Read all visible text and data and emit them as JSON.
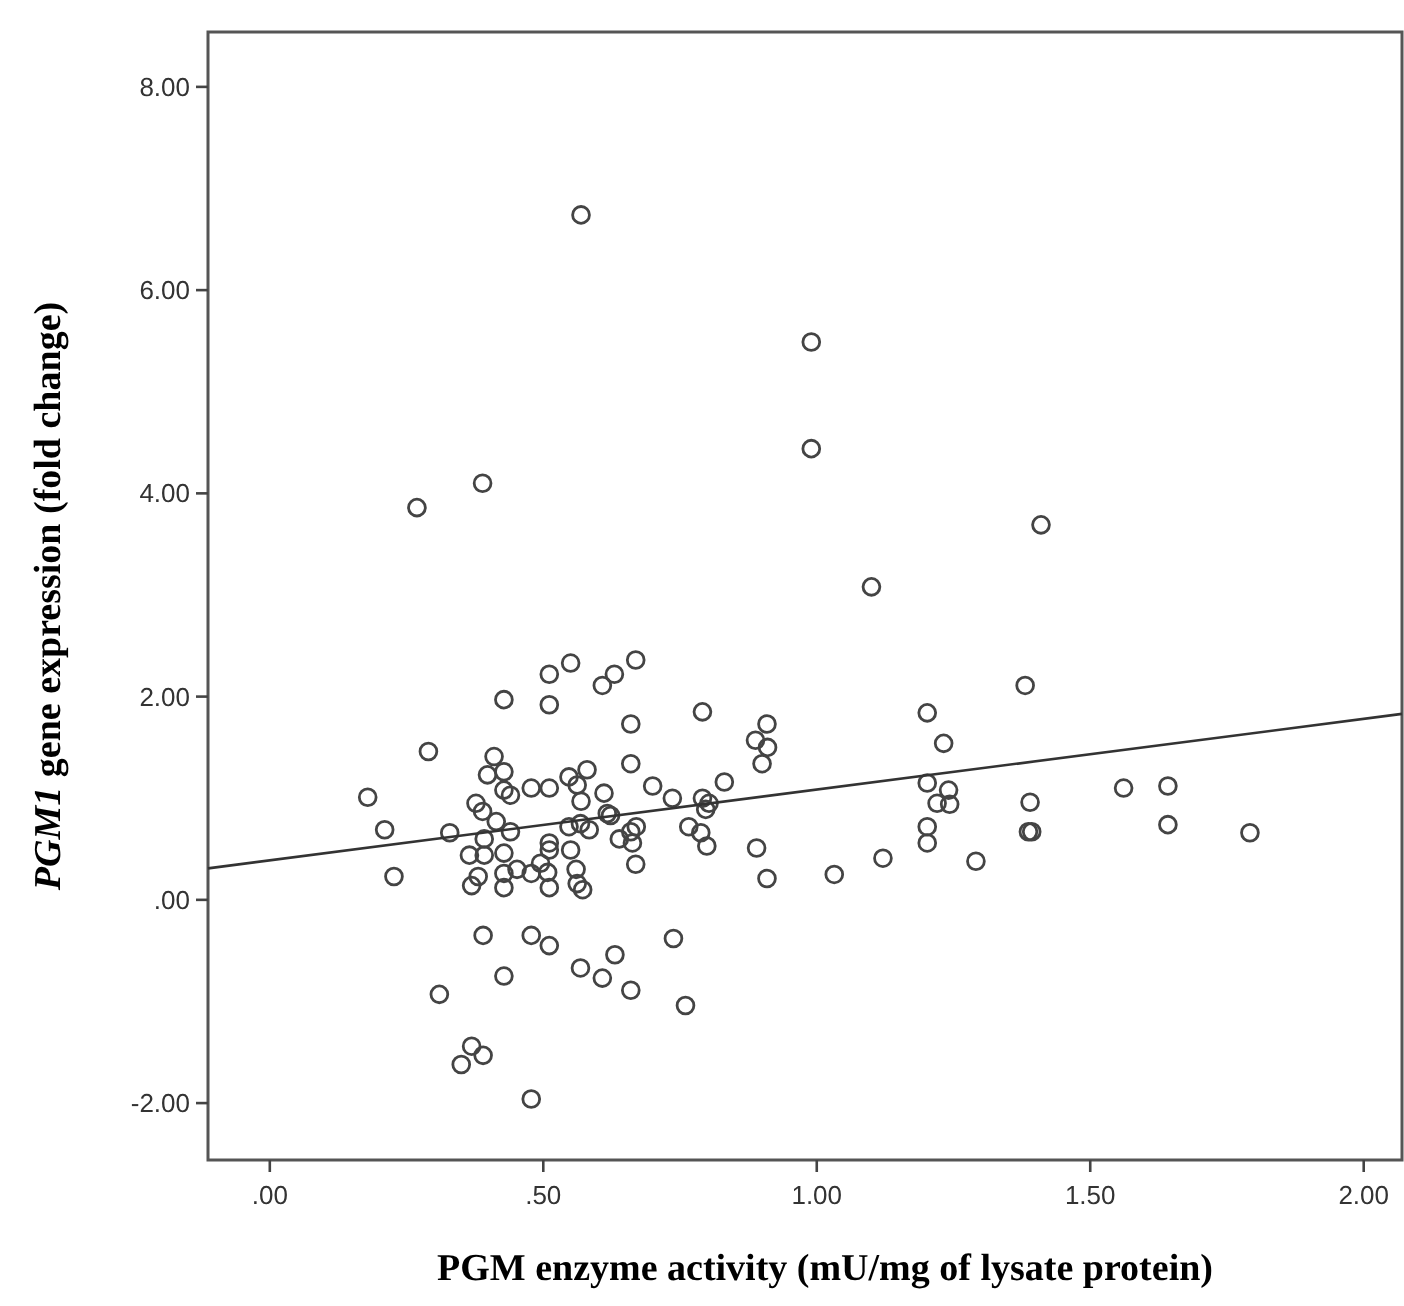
{
  "chart_data": {
    "type": "scatter",
    "xlabel": "PGM enzyme activity (mU/mg of lysate protein)",
    "ylabel": "PGM1 gene expression (fold change)",
    "xlim": [
      -0.113,
      2.07
    ],
    "ylim": [
      -2.56,
      8.54
    ],
    "xticks": [
      {
        "value": 0,
        "label": ".00"
      },
      {
        "value": 0.5,
        "label": ".50"
      },
      {
        "value": 1,
        "label": "1.00"
      },
      {
        "value": 1.5,
        "label": "1.50"
      },
      {
        "value": 2,
        "label": "2.00"
      }
    ],
    "yticks": [
      {
        "value": -2,
        "label": "-2.00"
      },
      {
        "value": 0,
        "label": ".00"
      },
      {
        "value": 2,
        "label": "2.00"
      },
      {
        "value": 4,
        "label": "4.00"
      },
      {
        "value": 6,
        "label": "6.00"
      },
      {
        "value": 8,
        "label": "8.00"
      }
    ],
    "grid": false,
    "marker": "circle",
    "series": [
      {
        "color": "#444444",
        "x": [
          0.569,
          0.389,
          0.269,
          0.99,
          0.99,
          1.41,
          1.1,
          0.179,
          0.21,
          0.227,
          0.29,
          0.31,
          0.329,
          0.35,
          0.369,
          0.39,
          0.39,
          0.369,
          0.381,
          0.365,
          0.392,
          0.392,
          0.377,
          0.389,
          0.41,
          0.398,
          0.414,
          0.428,
          0.428,
          0.428,
          0.44,
          0.44,
          0.428,
          0.428,
          0.428,
          0.452,
          0.428,
          0.478,
          0.478,
          0.478,
          0.478,
          0.495,
          0.511,
          0.511,
          0.511,
          0.511,
          0.511,
          0.508,
          0.511,
          0.511,
          0.55,
          0.547,
          0.562,
          0.547,
          0.55,
          0.56,
          0.562,
          0.572,
          0.568,
          0.569,
          0.568,
          0.58,
          0.584,
          0.608,
          0.63,
          0.611,
          0.617,
          0.623,
          0.608,
          0.631,
          0.639,
          0.66,
          0.66,
          0.66,
          0.663,
          0.67,
          0.669,
          0.669,
          0.66,
          0.7,
          0.736,
          0.738,
          0.76,
          0.766,
          0.791,
          0.791,
          0.797,
          0.803,
          0.788,
          0.799,
          0.831,
          0.888,
          0.909,
          0.91,
          0.9,
          0.89,
          0.909,
          1.202,
          1.232,
          1.202,
          1.241,
          1.22,
          1.243,
          1.202,
          1.202,
          1.121,
          1.032,
          1.291,
          1.381,
          1.39,
          1.387,
          1.393,
          1.561,
          1.642,
          1.642,
          1.792
        ],
        "values": [
          6.74,
          4.1,
          3.86,
          5.49,
          4.44,
          3.69,
          3.08,
          1.01,
          0.69,
          0.23,
          1.46,
          -0.93,
          0.66,
          -1.62,
          -1.44,
          -1.53,
          -0.35,
          0.14,
          0.23,
          0.44,
          0.44,
          0.6,
          0.95,
          0.87,
          1.41,
          1.23,
          0.77,
          1.97,
          1.26,
          1.08,
          1.03,
          0.67,
          0.46,
          0.26,
          0.12,
          0.3,
          -0.75,
          1.1,
          0.26,
          -0.35,
          -1.96,
          0.36,
          2.22,
          1.92,
          1.1,
          0.56,
          0.49,
          0.27,
          0.12,
          -0.45,
          2.33,
          1.21,
          1.13,
          0.72,
          0.49,
          0.3,
          0.16,
          0.1,
          -0.67,
          0.97,
          0.75,
          1.28,
          0.69,
          2.11,
          2.22,
          1.05,
          0.85,
          0.83,
          -0.77,
          -0.54,
          0.6,
          1.73,
          1.34,
          0.67,
          0.56,
          0.72,
          0.35,
          2.36,
          -0.89,
          1.12,
          1,
          -0.38,
          -1.04,
          0.72,
          1.85,
          1,
          0.89,
          0.95,
          0.66,
          0.53,
          1.16,
          1.57,
          1.73,
          1.5,
          1.34,
          0.51,
          0.21,
          1.84,
          1.54,
          1.15,
          1.08,
          0.95,
          0.94,
          0.72,
          0.56,
          0.41,
          0.25,
          0.38,
          2.11,
          0.96,
          0.67,
          0.67,
          1.1,
          1.12,
          0.74,
          0.66
        ]
      },
      {
        "type": "line",
        "color": "#333333",
        "marker": "none",
        "x": [
          -0.113,
          2.07
        ],
        "values": [
          0.31,
          1.83
        ]
      }
    ]
  }
}
